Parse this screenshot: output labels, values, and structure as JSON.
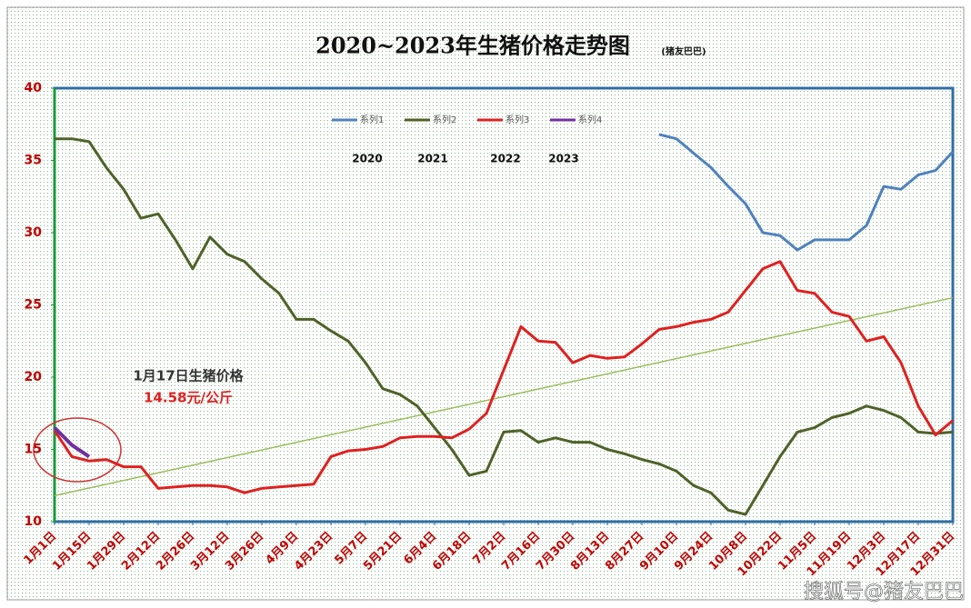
{
  "chart_data": {
    "type": "line",
    "title": "2020~2023年生猪价格走势图",
    "subtitle": "(猪友巴巴)",
    "annotations": {
      "years": [
        "2020",
        "2021",
        "2022",
        "2023"
      ],
      "note_title": "1月17日生猪价格",
      "note_value": "14.58元/公斤",
      "watermark": "搜狐号@猪友巴巴"
    },
    "categories": [
      "1月1日",
      null,
      "1月15日",
      null,
      "1月29日",
      null,
      "2月12日",
      null,
      "2月26日",
      null,
      "3月12日",
      null,
      "3月26日",
      null,
      "4月9日",
      null,
      "4月23日",
      null,
      "5月7日",
      null,
      "5月21日",
      null,
      "6月4日",
      null,
      "6月18日",
      null,
      "7月2日",
      null,
      "7月16日",
      null,
      "7月30日",
      null,
      "8月13日",
      null,
      "8月27日",
      null,
      "9月10日",
      null,
      "9月24日",
      null,
      "10月8日",
      null,
      "10月22日",
      null,
      "11月5日",
      null,
      "11月19日",
      null,
      "12月3日",
      null,
      "12月17日",
      null,
      "12月31日"
    ],
    "series": [
      {
        "name": "系列1",
        "color": "#4f81bd",
        "values": [
          null,
          null,
          null,
          null,
          null,
          null,
          null,
          null,
          null,
          null,
          null,
          null,
          null,
          null,
          null,
          null,
          null,
          null,
          null,
          null,
          null,
          null,
          null,
          null,
          null,
          null,
          null,
          null,
          null,
          null,
          null,
          null,
          null,
          null,
          null,
          36.8,
          36.5,
          35.5,
          34.5,
          33.2,
          32,
          30,
          29.8,
          28.8,
          29.5,
          29.5,
          29.5,
          30.5,
          33.2,
          33,
          34,
          34.3,
          35.6
        ]
      },
      {
        "name": "系列2",
        "color": "#4f6228",
        "values": [
          36.5,
          36.5,
          36.3,
          34.5,
          33,
          31,
          31.3,
          29.5,
          27.5,
          29.7,
          28.5,
          28,
          26.8,
          25.8,
          24,
          24,
          23.2,
          22.5,
          21,
          19.2,
          18.8,
          18,
          16.5,
          15,
          13.2,
          13.5,
          16.2,
          16.3,
          15.5,
          15.8,
          15.5,
          15.5,
          15,
          14.7,
          14.3,
          14,
          13.5,
          12.5,
          12,
          10.8,
          10.5,
          12.5,
          14.5,
          16.2,
          16.5,
          17.2,
          17.5,
          18,
          17.7,
          17.2,
          16.2,
          16.1,
          16.2
        ]
      },
      {
        "name": "系列3",
        "color": "#e02020",
        "values": [
          16.3,
          14.5,
          14.2,
          14.3,
          13.8,
          13.8,
          12.3,
          12.4,
          12.5,
          12.5,
          12.4,
          12,
          12.3,
          12.4,
          12.5,
          12.6,
          14.5,
          14.9,
          15,
          15.2,
          15.8,
          15.9,
          15.9,
          15.8,
          16.4,
          17.5,
          20.5,
          23.5,
          22.5,
          22.4,
          21,
          21.5,
          21.3,
          21.4,
          22.3,
          23.3,
          23.5,
          23.8,
          24,
          24.5,
          26,
          27.5,
          28,
          26,
          25.8,
          24.5,
          24.2,
          22.5,
          22.8,
          21,
          18,
          16,
          17
        ]
      },
      {
        "name": "系列4",
        "color": "#7030a0",
        "values": [
          16.5,
          15.3,
          14.5,
          null,
          null,
          null,
          null,
          null,
          null,
          null,
          null,
          null,
          null,
          null,
          null,
          null,
          null,
          null,
          null,
          null,
          null,
          null,
          null,
          null,
          null,
          null,
          null,
          null,
          null,
          null,
          null,
          null,
          null,
          null,
          null,
          null,
          null,
          null,
          null,
          null,
          null,
          null,
          null,
          null,
          null,
          null,
          null,
          null,
          null,
          null,
          null,
          null,
          null
        ]
      }
    ],
    "trendline": {
      "color": "#9bbb59",
      "start": 11.8,
      "end": 25.5
    },
    "ylim": [
      10,
      40
    ],
    "yticks": [
      10,
      15,
      20,
      25,
      30,
      35,
      40
    ]
  }
}
